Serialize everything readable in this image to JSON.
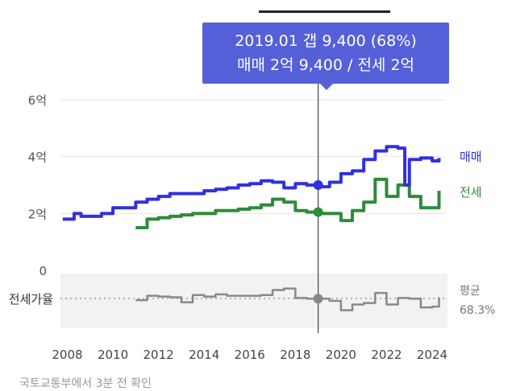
{
  "tooltip": {
    "line1": "2019.01  갭 9,400 (68%)",
    "line2": "매매 2억 9,400 / 전세 2억"
  },
  "legend": {
    "sale": "매매",
    "jeonse": "전세",
    "avg_label": "평균",
    "avg_value": "68.3%",
    "ratio_label": "전세가율"
  },
  "colors": {
    "sale": "#3030e0",
    "jeonse": "#2e8b3a",
    "ratio": "#888888",
    "tooltip_bg": "#5560d8",
    "ratio_panel": "#f2f2f2"
  },
  "footer_text": "국토교통부에서 3분 전 확인",
  "chart_data": {
    "type": "line",
    "x_ticks": [
      "2008",
      "2010",
      "2012",
      "2014",
      "2016",
      "2018",
      "2020",
      "2022",
      "2024"
    ],
    "y_ticks": [
      "0",
      "2억",
      "4억",
      "6억"
    ],
    "ylim": [
      0,
      6
    ],
    "xlim": [
      2007.7,
      2024.6
    ],
    "highlight_x": 2019.0,
    "series": [
      {
        "name": "매매",
        "x": [
          2007.8,
          2008.3,
          2008.6,
          2009.0,
          2009.5,
          2010.0,
          2010.5,
          2011.0,
          2011.5,
          2012.0,
          2012.5,
          2013.0,
          2013.5,
          2014.0,
          2014.5,
          2015.0,
          2015.5,
          2016.0,
          2016.5,
          2017.0,
          2017.5,
          2018.0,
          2018.5,
          2019.0,
          2019.5,
          2020.0,
          2020.5,
          2021.0,
          2021.5,
          2022.0,
          2022.5,
          2022.8,
          2023.0,
          2023.5,
          2024.0,
          2024.3
        ],
        "y": [
          1.8,
          2.0,
          1.9,
          1.9,
          2.0,
          2.2,
          2.2,
          2.4,
          2.5,
          2.6,
          2.7,
          2.7,
          2.7,
          2.8,
          2.85,
          2.9,
          3.0,
          3.05,
          3.15,
          3.1,
          2.9,
          3.05,
          3.0,
          2.94,
          3.1,
          3.4,
          3.5,
          3.9,
          4.2,
          4.35,
          4.3,
          3.0,
          3.9,
          3.95,
          3.85,
          3.95
        ]
      },
      {
        "name": "전세",
        "x": [
          2011.0,
          2011.5,
          2012.0,
          2012.5,
          2013.0,
          2013.5,
          2014.0,
          2014.5,
          2015.0,
          2015.5,
          2016.0,
          2016.5,
          2017.0,
          2017.5,
          2018.0,
          2018.5,
          2019.0,
          2019.5,
          2020.0,
          2020.5,
          2021.0,
          2021.5,
          2022.0,
          2022.5,
          2023.0,
          2023.5,
          2024.0,
          2024.3
        ],
        "y": [
          1.5,
          1.8,
          1.85,
          1.9,
          1.95,
          2.0,
          2.0,
          2.1,
          2.1,
          2.15,
          2.2,
          2.3,
          2.5,
          2.4,
          2.1,
          2.05,
          2.0,
          2.0,
          1.75,
          2.1,
          2.4,
          3.2,
          2.6,
          3.0,
          2.6,
          2.2,
          2.2,
          2.8
        ]
      },
      {
        "name": "전세가율",
        "x": [
          2011.0,
          2011.5,
          2012.0,
          2012.5,
          2013.0,
          2013.5,
          2014.0,
          2014.5,
          2015.0,
          2015.5,
          2016.0,
          2016.5,
          2017.0,
          2017.5,
          2018.0,
          2018.5,
          2019.0,
          2019.5,
          2020.0,
          2020.5,
          2021.0,
          2021.5,
          2022.0,
          2022.5,
          2023.0,
          2023.5,
          2024.0,
          2024.3
        ],
        "y": [
          66,
          72,
          71,
          70,
          63,
          73,
          71,
          74,
          72,
          72,
          72,
          73,
          80,
          82,
          69,
          68,
          68,
          65,
          52,
          60,
          62,
          76,
          60,
          69,
          68,
          56,
          57,
          70
        ]
      }
    ],
    "avg_ratio": 68.3
  }
}
